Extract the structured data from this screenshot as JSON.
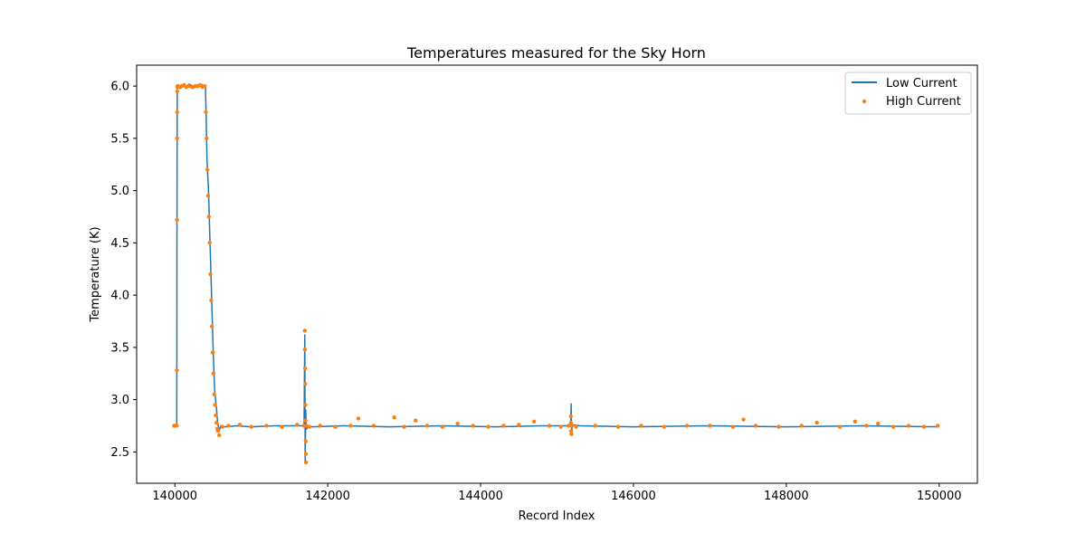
{
  "chart_data": {
    "type": "line",
    "title": "Temperatures measured for the Sky Horn",
    "xlabel": "Record Index",
    "ylabel": "Temperature (K)",
    "xlim": [
      139500,
      150500
    ],
    "ylim": [
      2.2,
      6.2
    ],
    "x_ticks": [
      140000,
      142000,
      144000,
      146000,
      148000,
      150000
    ],
    "x_tick_labels": [
      "140000",
      "142000",
      "144000",
      "146000",
      "148000",
      "150000"
    ],
    "y_ticks": [
      2.5,
      3.0,
      3.5,
      4.0,
      4.5,
      5.0,
      5.5,
      6.0
    ],
    "y_tick_labels": [
      "2.5",
      "3.0",
      "3.5",
      "4.0",
      "4.5",
      "5.0",
      "5.5",
      "6.0"
    ],
    "grid": false,
    "legend_position": "top-right",
    "series": [
      {
        "name": "Low Current",
        "kind": "line",
        "color": "#1f77b4",
        "x": [
          139980,
          140025,
          140028,
          140031,
          140050,
          140080,
          140100,
          140130,
          140160,
          140190,
          140220,
          140250,
          140280,
          140310,
          140340,
          140370,
          140400,
          140410,
          140420,
          140440,
          140460,
          140480,
          140500,
          140520,
          140540,
          140560,
          140580,
          140600,
          140650,
          140800,
          141000,
          141300,
          141600,
          141690,
          141700,
          141705,
          141712,
          141718,
          141725,
          141740,
          141800,
          142200,
          142800,
          143500,
          144200,
          144800,
          145100,
          145180,
          145185,
          145190,
          145200,
          145300,
          146000,
          147000,
          148000,
          149000,
          150000
        ],
        "y": [
          2.75,
          2.75,
          4.8,
          6.0,
          6.0,
          5.98,
          6.01,
          5.99,
          6.0,
          6.02,
          5.98,
          6.0,
          6.01,
          5.99,
          6.02,
          6.0,
          6.0,
          5.7,
          5.3,
          5.0,
          4.5,
          4.0,
          3.5,
          3.1,
          2.95,
          2.78,
          2.7,
          2.75,
          2.74,
          2.75,
          2.74,
          2.75,
          2.75,
          2.75,
          3.62,
          2.4,
          2.9,
          2.75,
          2.72,
          2.75,
          2.74,
          2.75,
          2.74,
          2.75,
          2.74,
          2.75,
          2.75,
          2.75,
          2.96,
          2.68,
          2.76,
          2.75,
          2.74,
          2.75,
          2.74,
          2.75,
          2.74
        ]
      },
      {
        "name": "High Current",
        "kind": "scatter",
        "color": "#ff7f0e",
        "x": [
          139990,
          140010,
          140025,
          140027,
          140028,
          140029,
          140030,
          140031,
          140033,
          140035,
          140040,
          140060,
          140090,
          140120,
          140150,
          140180,
          140210,
          140240,
          140270,
          140300,
          140330,
          140360,
          140390,
          140405,
          140415,
          140425,
          140435,
          140445,
          140455,
          140465,
          140475,
          140485,
          140495,
          140505,
          140515,
          140525,
          140535,
          140545,
          140555,
          140565,
          140580,
          140620,
          140700,
          140850,
          141000,
          141200,
          141400,
          141600,
          141690,
          141700,
          141702,
          141704,
          141706,
          141708,
          141710,
          141712,
          141714,
          141716,
          141720,
          141760,
          141900,
          142100,
          142300,
          142400,
          142600,
          142870,
          143000,
          143150,
          143300,
          143500,
          143700,
          143900,
          144100,
          144300,
          144500,
          144700,
          144900,
          145050,
          145150,
          145180,
          145182,
          145185,
          145188,
          145195,
          145250,
          145500,
          145800,
          146100,
          146400,
          146700,
          147000,
          147300,
          147440,
          147600,
          147900,
          148200,
          148400,
          148700,
          148900,
          149050,
          149200,
          149400,
          149600,
          149800,
          149980
        ],
        "y": [
          2.75,
          2.75,
          2.75,
          3.28,
          4.72,
          5.5,
          5.75,
          5.95,
          5.99,
          6.0,
          6.0,
          5.99,
          6.0,
          6.01,
          5.99,
          6.0,
          6.0,
          5.99,
          6.0,
          6.0,
          6.01,
          5.99,
          6.0,
          5.75,
          5.5,
          5.2,
          4.95,
          4.75,
          4.5,
          4.2,
          3.95,
          3.7,
          3.45,
          3.25,
          3.05,
          2.95,
          2.85,
          2.78,
          2.72,
          2.7,
          2.66,
          2.74,
          2.75,
          2.76,
          2.74,
          2.75,
          2.74,
          2.76,
          2.75,
          3.66,
          3.48,
          3.3,
          3.15,
          2.95,
          2.8,
          2.6,
          2.48,
          2.4,
          2.75,
          2.74,
          2.75,
          2.74,
          2.75,
          2.82,
          2.75,
          2.83,
          2.74,
          2.8,
          2.75,
          2.74,
          2.77,
          2.75,
          2.74,
          2.75,
          2.76,
          2.79,
          2.75,
          2.74,
          2.75,
          2.84,
          2.78,
          2.7,
          2.67,
          2.75,
          2.74,
          2.75,
          2.74,
          2.75,
          2.74,
          2.75,
          2.75,
          2.74,
          2.81,
          2.75,
          2.74,
          2.75,
          2.78,
          2.74,
          2.79,
          2.75,
          2.77,
          2.74,
          2.75,
          2.74,
          2.75
        ]
      }
    ]
  }
}
